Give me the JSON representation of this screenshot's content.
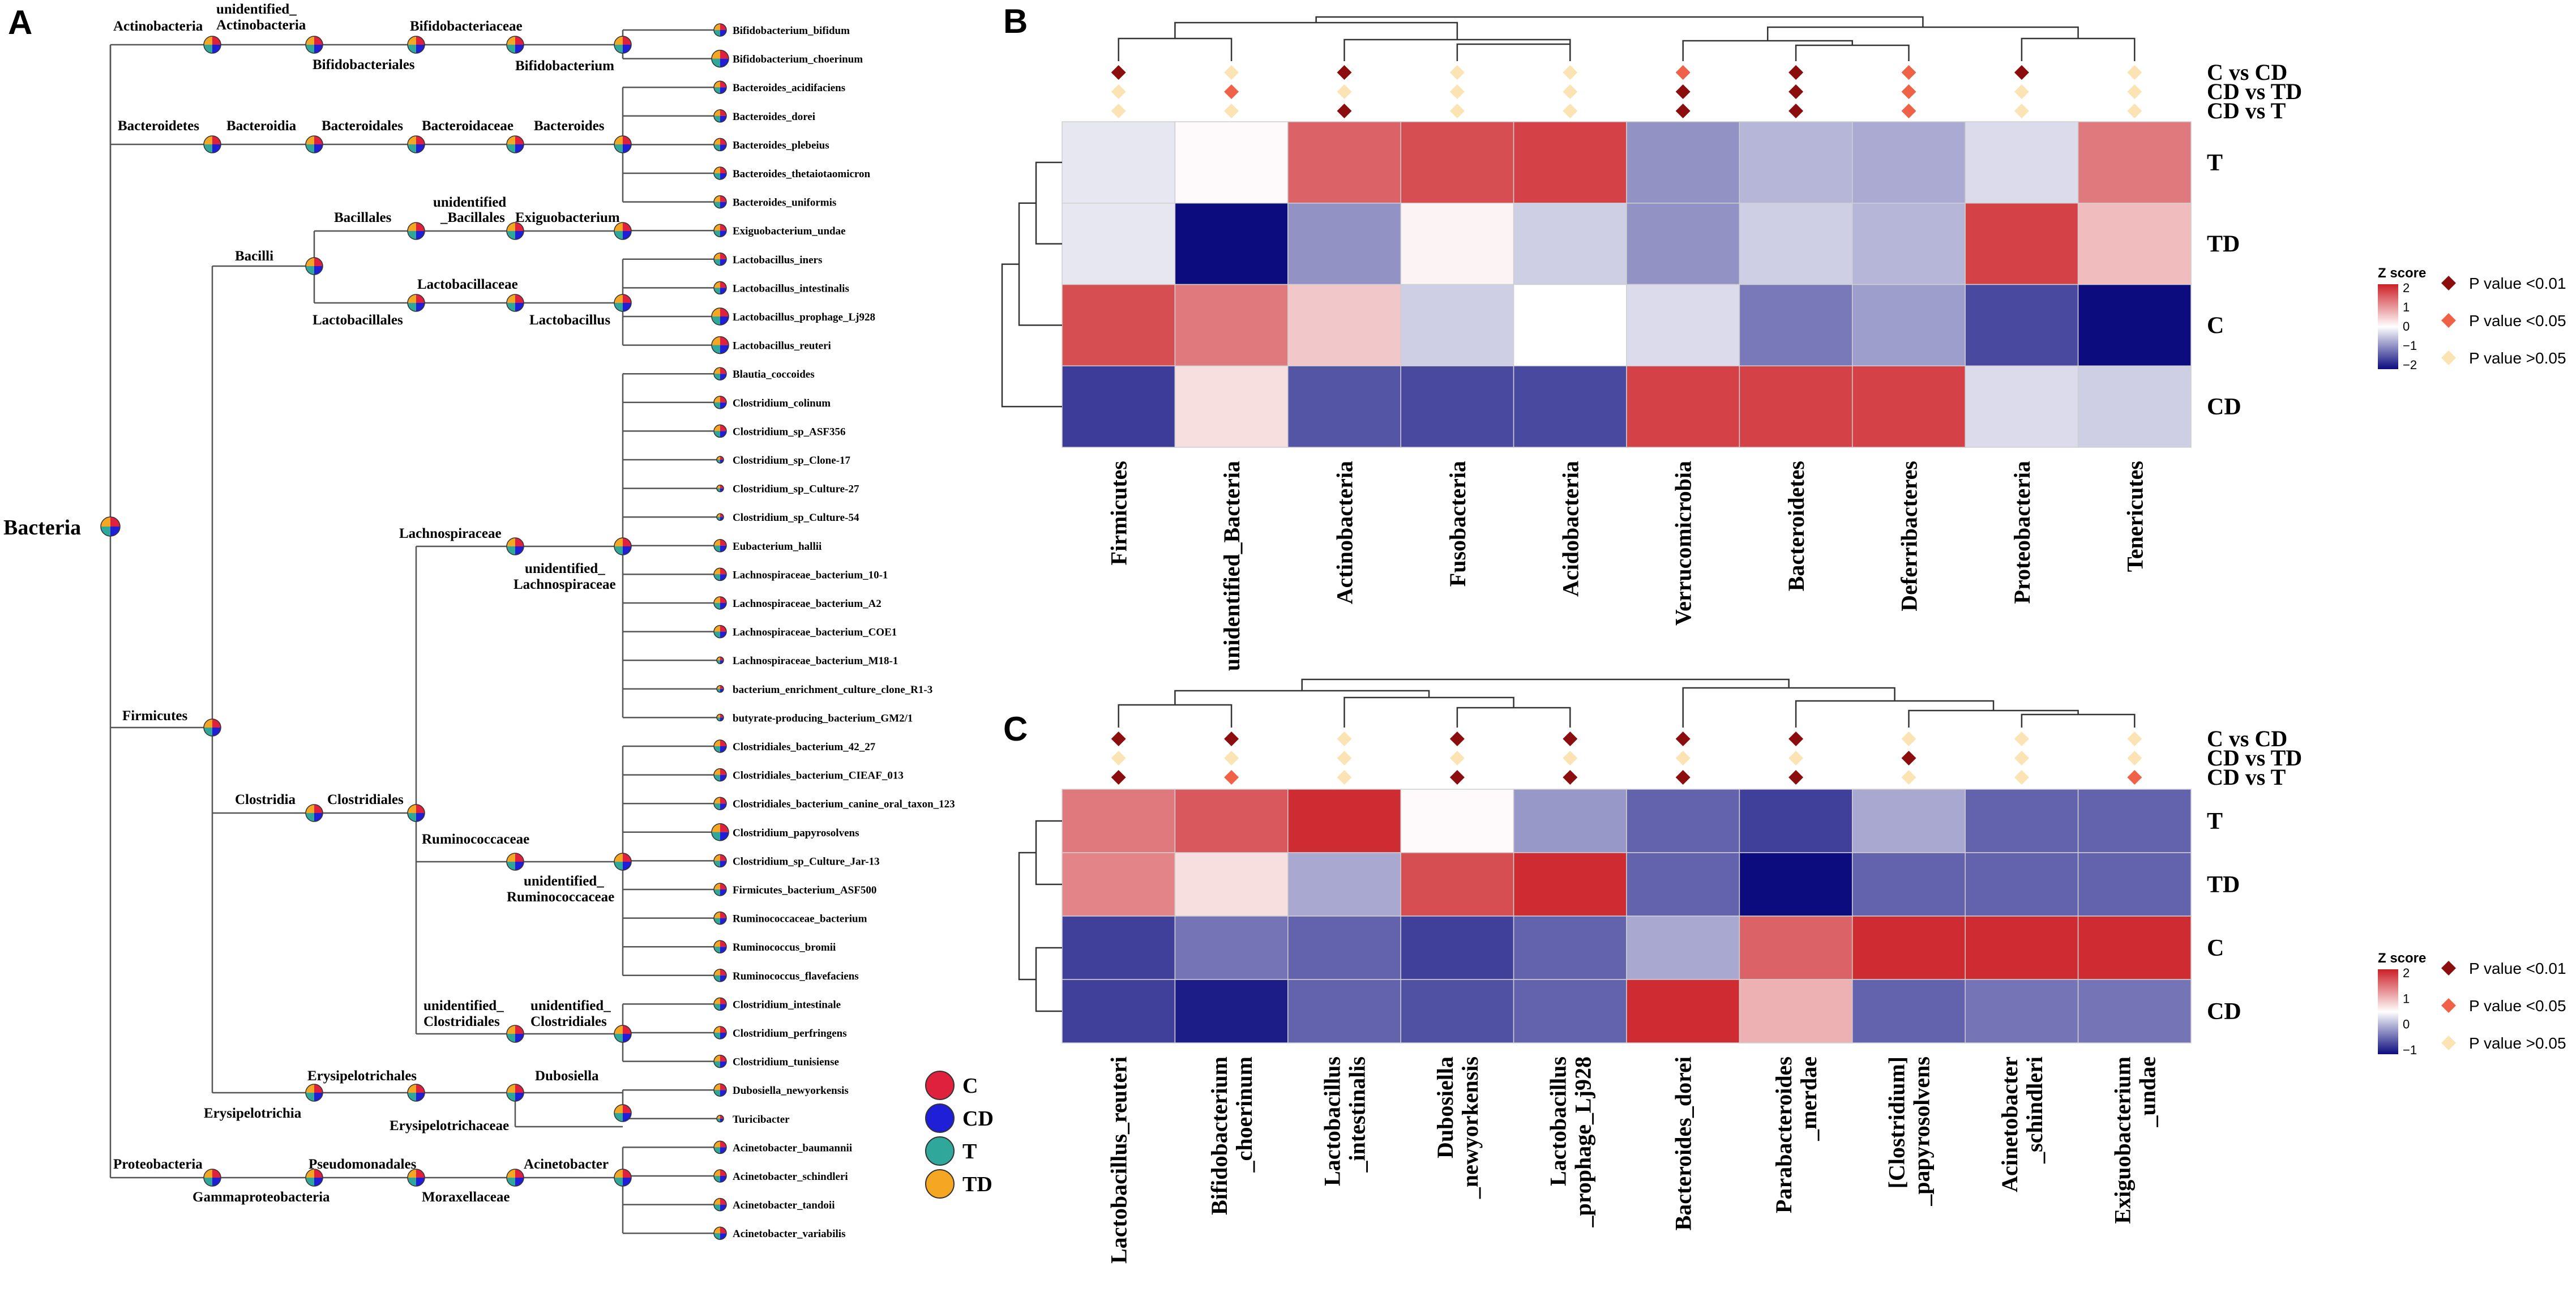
{
  "colors": {
    "C": "#e0213e",
    "CD": "#1f1fd8",
    "T": "#2fa79a",
    "TD": "#f5a623",
    "sig01": "#8b0d0d",
    "sig05": "#f06248",
    "ns": "#fce3b4",
    "heat_high": "#cc2027",
    "heat_mid": "#ffffff",
    "heat_low": "#0c0c7f"
  },
  "panelA": {
    "panel_label": "A",
    "root_label": "Bacteria",
    "legend": [
      {
        "label": "C",
        "color_key": "C"
      },
      {
        "label": "CD",
        "color_key": "CD"
      },
      {
        "label": "T",
        "color_key": "T"
      },
      {
        "label": "TD",
        "color_key": "TD"
      }
    ],
    "taxa_labels": {
      "actinobacteria": "Actinobacteria",
      "unid_actino_1": "unidentified_",
      "unid_actino_2": "Actinobacteria",
      "bifidobacteriales": "Bifidobacteriales",
      "bifidobacteriaceae": "Bifidobacteriaceae",
      "bifidobacterium": "Bifidobacterium",
      "bacteroidetes": "Bacteroidetes",
      "bacteroidia": "Bacteroidia",
      "bacteroidales": "Bacteroidales",
      "bacteroidaceae": "Bacteroidaceae",
      "bacteroides": "Bacteroides",
      "bacilli": "Bacilli",
      "bacillales": "Bacillales",
      "unid_bacillales_1": "unidentified",
      "unid_bacillales_2": "_Bacillales",
      "exiguobacterium": "Exiguobacterium",
      "lactobacillales": "Lactobacillales",
      "lactobacillaceae": "Lactobacillaceae",
      "lactobacillus": "Lactobacillus",
      "firmicutes": "Firmicutes",
      "lachnospiraceae": "Lachnospiraceae",
      "unid_lachno_1": "unidentified_",
      "unid_lachno_2": "Lachnospiraceae",
      "clostridia": "Clostridia",
      "clostridiales": "Clostridiales",
      "ruminococcaceae": "Ruminococcaceae",
      "unid_rumino_1": "unidentified_",
      "unid_rumino_2": "Ruminococcaceae",
      "unid_clostridiales_a1": "unidentified_",
      "unid_clostridiales_a2": "Clostridiales",
      "unid_clostridiales_b1": "unidentified_",
      "unid_clostridiales_b2": "Clostridiales",
      "erysipelotrichales": "Erysipelotrichales",
      "erysipelotrichia": "Erysipelotrichia",
      "dubosiella": "Dubosiella",
      "erysipelotrichaceae": "Erysipelotrichaceae",
      "proteobacteria": "Proteobacteria",
      "gammaproteobacteria": "Gammaproteobacteria",
      "pseudomonadales": "Pseudomonadales",
      "moraxellaceae": "Moraxellaceae",
      "acinetobacter": "Acinetobacter"
    },
    "leaves": [
      "Bifidobacterium_bifidum",
      "Bifidobacterium_choerinum",
      "Bacteroides_acidifaciens",
      "Bacteroides_dorei",
      "Bacteroides_plebeius",
      "Bacteroides_thetaiotaomicron",
      "Bacteroides_uniformis",
      "Exiguobacterium_undae",
      "Lactobacillus_iners",
      "Lactobacillus_intestinalis",
      "Lactobacillus_prophage_Lj928",
      "Lactobacillus_reuteri",
      "Blautia_coccoides",
      "Clostridium_colinum",
      "Clostridium_sp_ASF356",
      "Clostridium_sp_Clone-17",
      "Clostridium_sp_Culture-27",
      "Clostridium_sp_Culture-54",
      "Eubacterium_hallii",
      "Lachnospiraceae_bacterium_10-1",
      "Lachnospiraceae_bacterium_A2",
      "Lachnospiraceae_bacterium_COE1",
      "Lachnospiraceae_bacterium_M18-1",
      "bacterium_enrichment_culture_clone_R1-3",
      "butyrate-producing_bacterium_GM2/1",
      "Clostridiales_bacterium_42_27",
      "Clostridiales_bacterium_CIEAF_013",
      "Clostridiales_bacterium_canine_oral_taxon_123",
      "Clostridium_papyrosolvens",
      "Clostridium_sp_Culture_Jar-13",
      "Firmicutes_bacterium_ASF500",
      "Ruminococcaceae_bacterium",
      "Ruminococcus_bromii",
      "Ruminococcus_flavefaciens",
      "Clostridium_intestinale",
      "Clostridium_perfringens",
      "Clostridium_tunisiense",
      "Dubosiella_newyorkensis",
      "Turicibacter",
      "Acinetobacter_baumannii",
      "Acinetobacter_schindleri",
      "Acinetobacter_tandoii",
      "Acinetobacter_variabilis"
    ]
  },
  "panelB": {
    "panel_label": "B",
    "comparisons": [
      "C vs CD",
      "CD vs TD",
      "CD vs T"
    ],
    "legend_title": "Z score",
    "legend_ticks": [
      "2",
      "1",
      "0",
      "−1",
      "−2"
    ],
    "p_legend": [
      {
        "label": "P value <0.01",
        "color_key": "sig01"
      },
      {
        "label": "P value <0.05",
        "color_key": "sig05"
      },
      {
        "label": "P value >0.05",
        "color_key": "ns"
      }
    ]
  },
  "panelC": {
    "panel_label": "C",
    "comparisons": [
      "C vs CD",
      "CD vs TD",
      "CD vs T"
    ],
    "legend_title": "Z score",
    "legend_ticks": [
      "2",
      "1",
      "0",
      "−1"
    ],
    "p_legend": [
      {
        "label": "P value <0.01",
        "color_key": "sig01"
      },
      {
        "label": "P value <0.05",
        "color_key": "sig05"
      },
      {
        "label": "P value >0.05",
        "color_key": "ns"
      }
    ]
  },
  "chart_data": [
    {
      "type": "heatmap",
      "panel": "B",
      "title": "",
      "rows": [
        "T",
        "TD",
        "C",
        "CD"
      ],
      "columns": [
        "Firmicutes",
        "unidentified_Bacteria",
        "Actinobacteria",
        "Fusobacteria",
        "Acidobacteria",
        "Verrucomicrobia",
        "Bacteroidetes",
        "Deferribacteres",
        "Proteobacteria",
        "Tenericutes"
      ],
      "z_scores": [
        [
          -0.2,
          0.05,
          1.4,
          1.6,
          1.7,
          -0.9,
          -0.6,
          -0.7,
          -0.3,
          1.2
        ],
        [
          -0.2,
          -2.0,
          -0.9,
          0.1,
          -0.4,
          -0.9,
          -0.4,
          -0.6,
          1.7,
          0.6
        ],
        [
          1.6,
          1.2,
          0.5,
          -0.4,
          0.0,
          -0.3,
          -1.1,
          -0.8,
          -1.5,
          -2.0
        ],
        [
          -1.6,
          0.3,
          -1.4,
          -1.5,
          -1.5,
          1.7,
          1.7,
          1.7,
          -0.3,
          -0.4
        ]
      ],
      "value_range": [
        -2,
        2
      ],
      "significance": {
        "C vs CD": [
          "<0.01",
          ">0.05",
          "<0.01",
          ">0.05",
          ">0.05",
          "<0.05",
          "<0.01",
          "<0.05",
          "<0.01",
          ">0.05"
        ],
        "CD vs TD": [
          ">0.05",
          "<0.05",
          ">0.05",
          ">0.05",
          ">0.05",
          "<0.01",
          "<0.01",
          "<0.05",
          ">0.05",
          ">0.05"
        ],
        "CD vs T": [
          ">0.05",
          ">0.05",
          "<0.01",
          ">0.05",
          ">0.05",
          "<0.01",
          "<0.01",
          "<0.05",
          ">0.05",
          ">0.05"
        ]
      }
    },
    {
      "type": "heatmap",
      "panel": "C",
      "title": "",
      "rows": [
        "T",
        "TD",
        "C",
        "CD"
      ],
      "columns": [
        "Lactobacillus_reuteri",
        "Bifidobacterium_choerinum",
        "Lactobacillus_intestinalis",
        "Dubosiella_newyorkensis",
        "Lactobacillus_prophage_Lj928",
        "Bacteroides_dorei",
        "Parabacteroides_merdae",
        "[Clostridium]_papyrosolvens",
        "Acinetobacter_schindleri",
        "Exiguobacterium_undae"
      ],
      "column_labels": [
        [
          "Lactobacillus_reuteri"
        ],
        [
          "Bifidobacterium",
          "_choerinum"
        ],
        [
          "Lactobacillus",
          "_intestinalis"
        ],
        [
          "Dubosiella",
          "_newyorkensis"
        ],
        [
          "Lactobacillus",
          "_prophage_Lj928"
        ],
        [
          "Bacteroides_dorei"
        ],
        [
          "Parabacteroides",
          "_merdae"
        ],
        [
          "[Clostridium]",
          "_papyrosolvens"
        ],
        [
          "Acinetobacter",
          "_schindleri"
        ],
        [
          "Exiguobacterium",
          "_undae"
        ]
      ],
      "z_scores": [
        [
          1.2,
          1.5,
          1.9,
          0.05,
          -0.6,
          -0.9,
          -1.1,
          -0.5,
          -0.9,
          -0.9
        ],
        [
          1.1,
          0.3,
          -0.5,
          1.6,
          1.9,
          -0.9,
          -1.4,
          -0.9,
          -0.9,
          -0.9
        ],
        [
          -1.1,
          -0.8,
          -0.9,
          -1.1,
          -0.9,
          -0.5,
          1.4,
          1.9,
          1.9,
          1.9
        ],
        [
          -1.1,
          -1.3,
          -0.9,
          -1.0,
          -0.9,
          1.9,
          0.7,
          -0.9,
          -0.8,
          -0.8
        ]
      ],
      "value_range": [
        -1.4,
        2
      ],
      "significance": {
        "C vs CD": [
          "<0.01",
          "<0.01",
          ">0.05",
          "<0.01",
          "<0.01",
          "<0.01",
          "<0.01",
          ">0.05",
          ">0.05",
          ">0.05"
        ],
        "CD vs TD": [
          ">0.05",
          ">0.05",
          ">0.05",
          ">0.05",
          ">0.05",
          ">0.05",
          ">0.05",
          "<0.01",
          ">0.05",
          ">0.05"
        ],
        "CD vs T": [
          "<0.01",
          "<0.05",
          ">0.05",
          "<0.01",
          "<0.01",
          "<0.01",
          "<0.01",
          ">0.05",
          ">0.05",
          "<0.05"
        ]
      }
    }
  ]
}
